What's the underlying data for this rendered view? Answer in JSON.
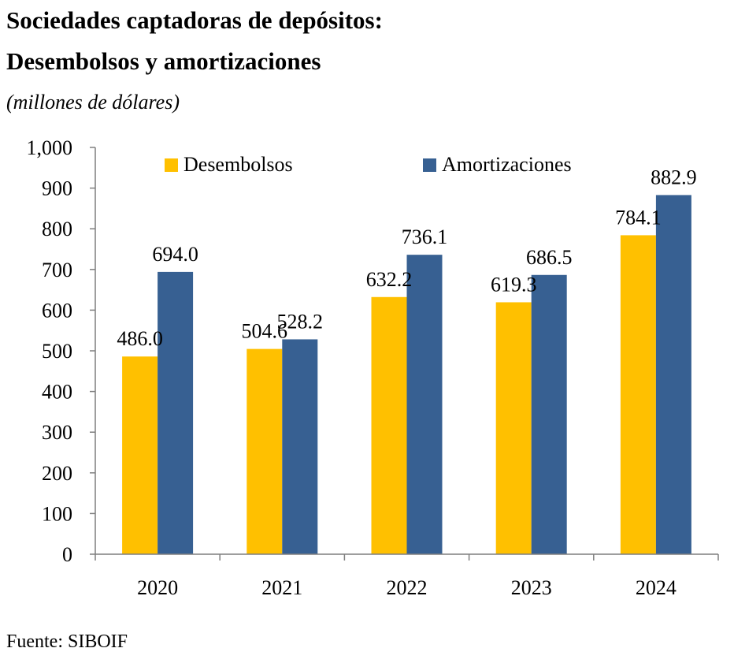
{
  "title_line1": "Sociedades captadoras de depósitos:",
  "title_line2": "Desembolsos y amortizaciones",
  "subtitle": "(millones de dólares)",
  "source": "Fuente:  SIBOIF",
  "colors": {
    "desembolsos": "#FFC000",
    "amortizaciones": "#376092"
  },
  "chart_data": {
    "type": "bar",
    "categories": [
      "2020",
      "2021",
      "2022",
      "2023",
      "2024"
    ],
    "series": [
      {
        "name": "Desembolsos",
        "values": [
          486.0,
          504.6,
          632.2,
          619.3,
          784.1
        ]
      },
      {
        "name": "Amortizaciones",
        "values": [
          694.0,
          528.2,
          736.1,
          686.5,
          882.9
        ]
      }
    ],
    "ylim": [
      0,
      1000
    ],
    "yticks": [
      0,
      100,
      200,
      300,
      400,
      500,
      600,
      700,
      800,
      900,
      1000
    ],
    "ytick_labels": [
      "0",
      "100",
      "200",
      "300",
      "400",
      "500",
      "600",
      "700",
      "800",
      "900",
      "1,000"
    ],
    "legend_position": "top",
    "grid": false,
    "data_labels": true
  }
}
